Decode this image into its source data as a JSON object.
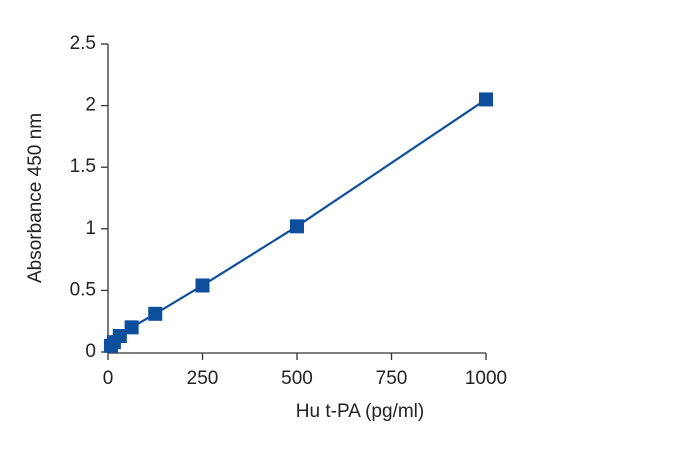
{
  "chart_data": {
    "type": "line",
    "x_label": "Hu t-PA (pg/ml)",
    "y_label": "Absorbance 450 nm",
    "series": [
      {
        "name": "Hu t-PA",
        "color": "#0d4f9c",
        "x": [
          7.8,
          15.6,
          31.25,
          62.5,
          125,
          250,
          500,
          1000
        ],
        "values": [
          0.05,
          0.08,
          0.13,
          0.2,
          0.31,
          0.54,
          1.02,
          2.05
        ]
      }
    ],
    "xlim": [
      0,
      1000
    ],
    "xticks": [
      0,
      250,
      500,
      750,
      1000
    ],
    "ylim": [
      0,
      2.5
    ],
    "yticks": [
      0,
      0.5,
      1,
      1.5,
      2,
      2.5
    ]
  }
}
